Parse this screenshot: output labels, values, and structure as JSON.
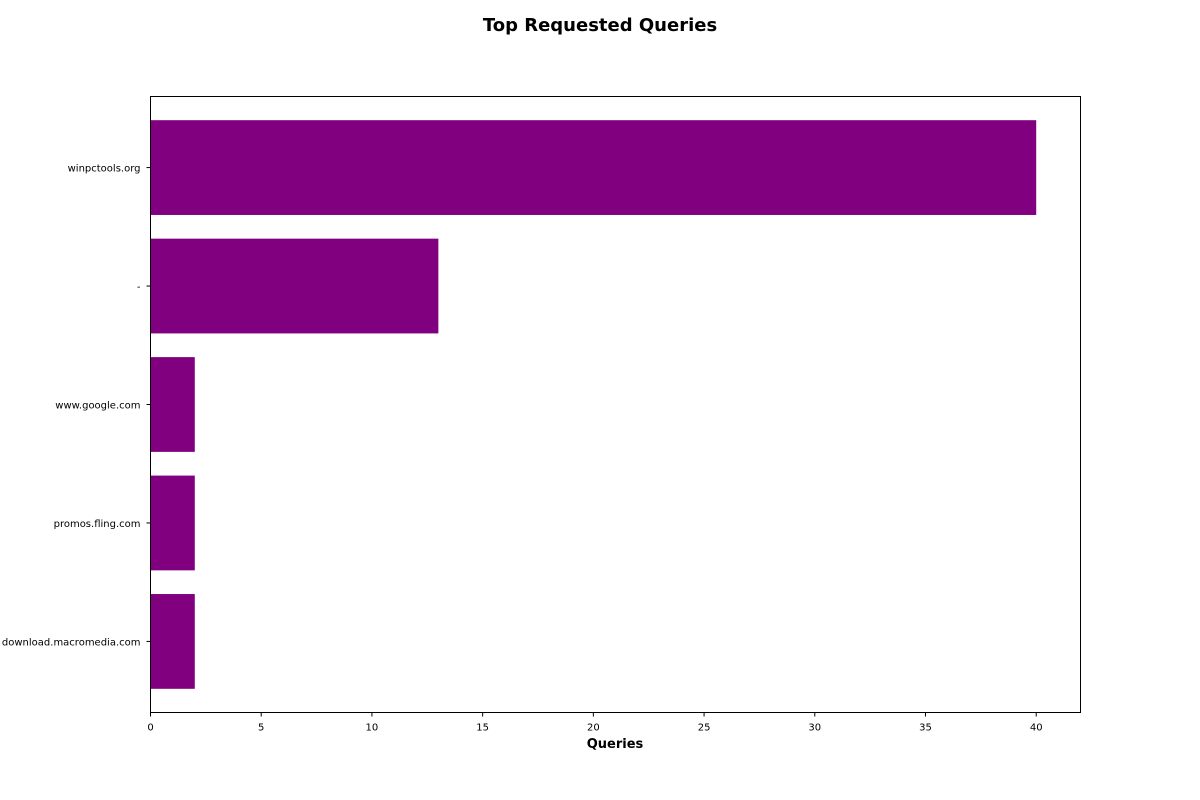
{
  "chart_data": {
    "type": "bar",
    "orientation": "horizontal",
    "title": "Top Requested Queries",
    "xlabel": "Queries",
    "ylabel": "",
    "categories": [
      "winpctools.org",
      "-",
      "www.google.com",
      "promos.fling.com",
      "download.macromedia.com"
    ],
    "values": [
      40,
      13,
      2,
      2,
      2
    ],
    "xlim": [
      0,
      42
    ],
    "xticks": [
      0,
      5,
      10,
      15,
      20,
      25,
      30,
      35,
      40
    ],
    "bar_color": "#800080",
    "grid": false,
    "legend": false
  }
}
